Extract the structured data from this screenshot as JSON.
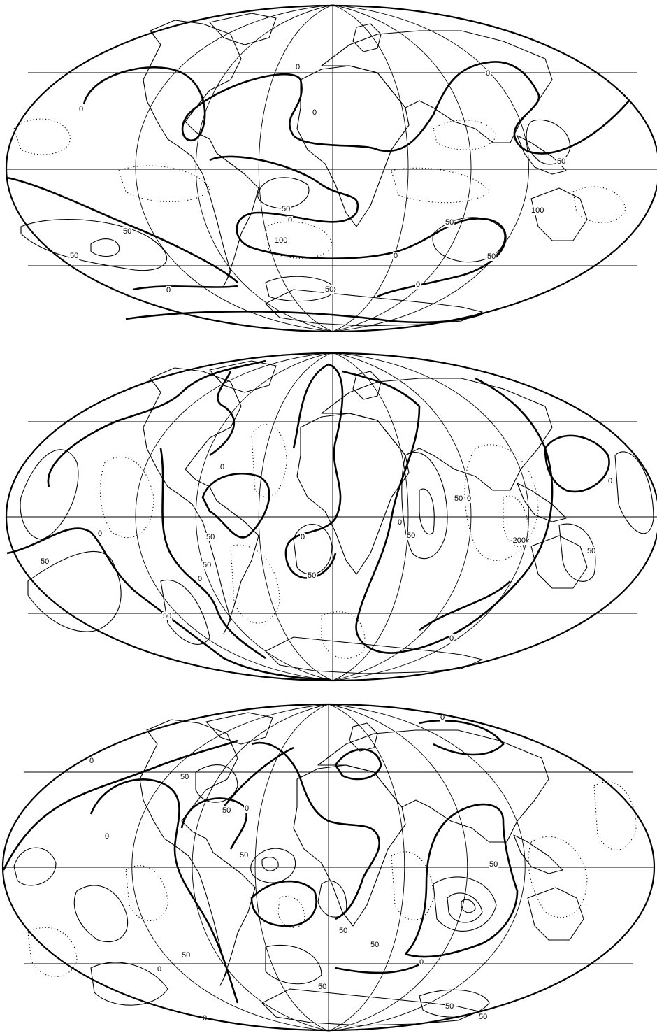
{
  "maps": [
    {
      "labels": [
        "0",
        "0",
        "0",
        "0",
        "0",
        "0",
        "0",
        "0",
        "50",
        "50",
        "50",
        "50",
        "50",
        "50",
        "100",
        "100",
        "50"
      ]
    },
    {
      "labels": [
        "0",
        "0",
        "0",
        "0",
        "0",
        "0",
        "0",
        "0",
        "50",
        "50",
        "50",
        "50",
        "50",
        "50",
        "50",
        "50",
        "-200"
      ]
    },
    {
      "labels": [
        "0",
        "0",
        "0",
        "0",
        "0",
        "0",
        "0",
        "50",
        "50",
        "50",
        "50",
        "50",
        "50",
        "50",
        "50",
        "50",
        "50"
      ]
    }
  ]
}
